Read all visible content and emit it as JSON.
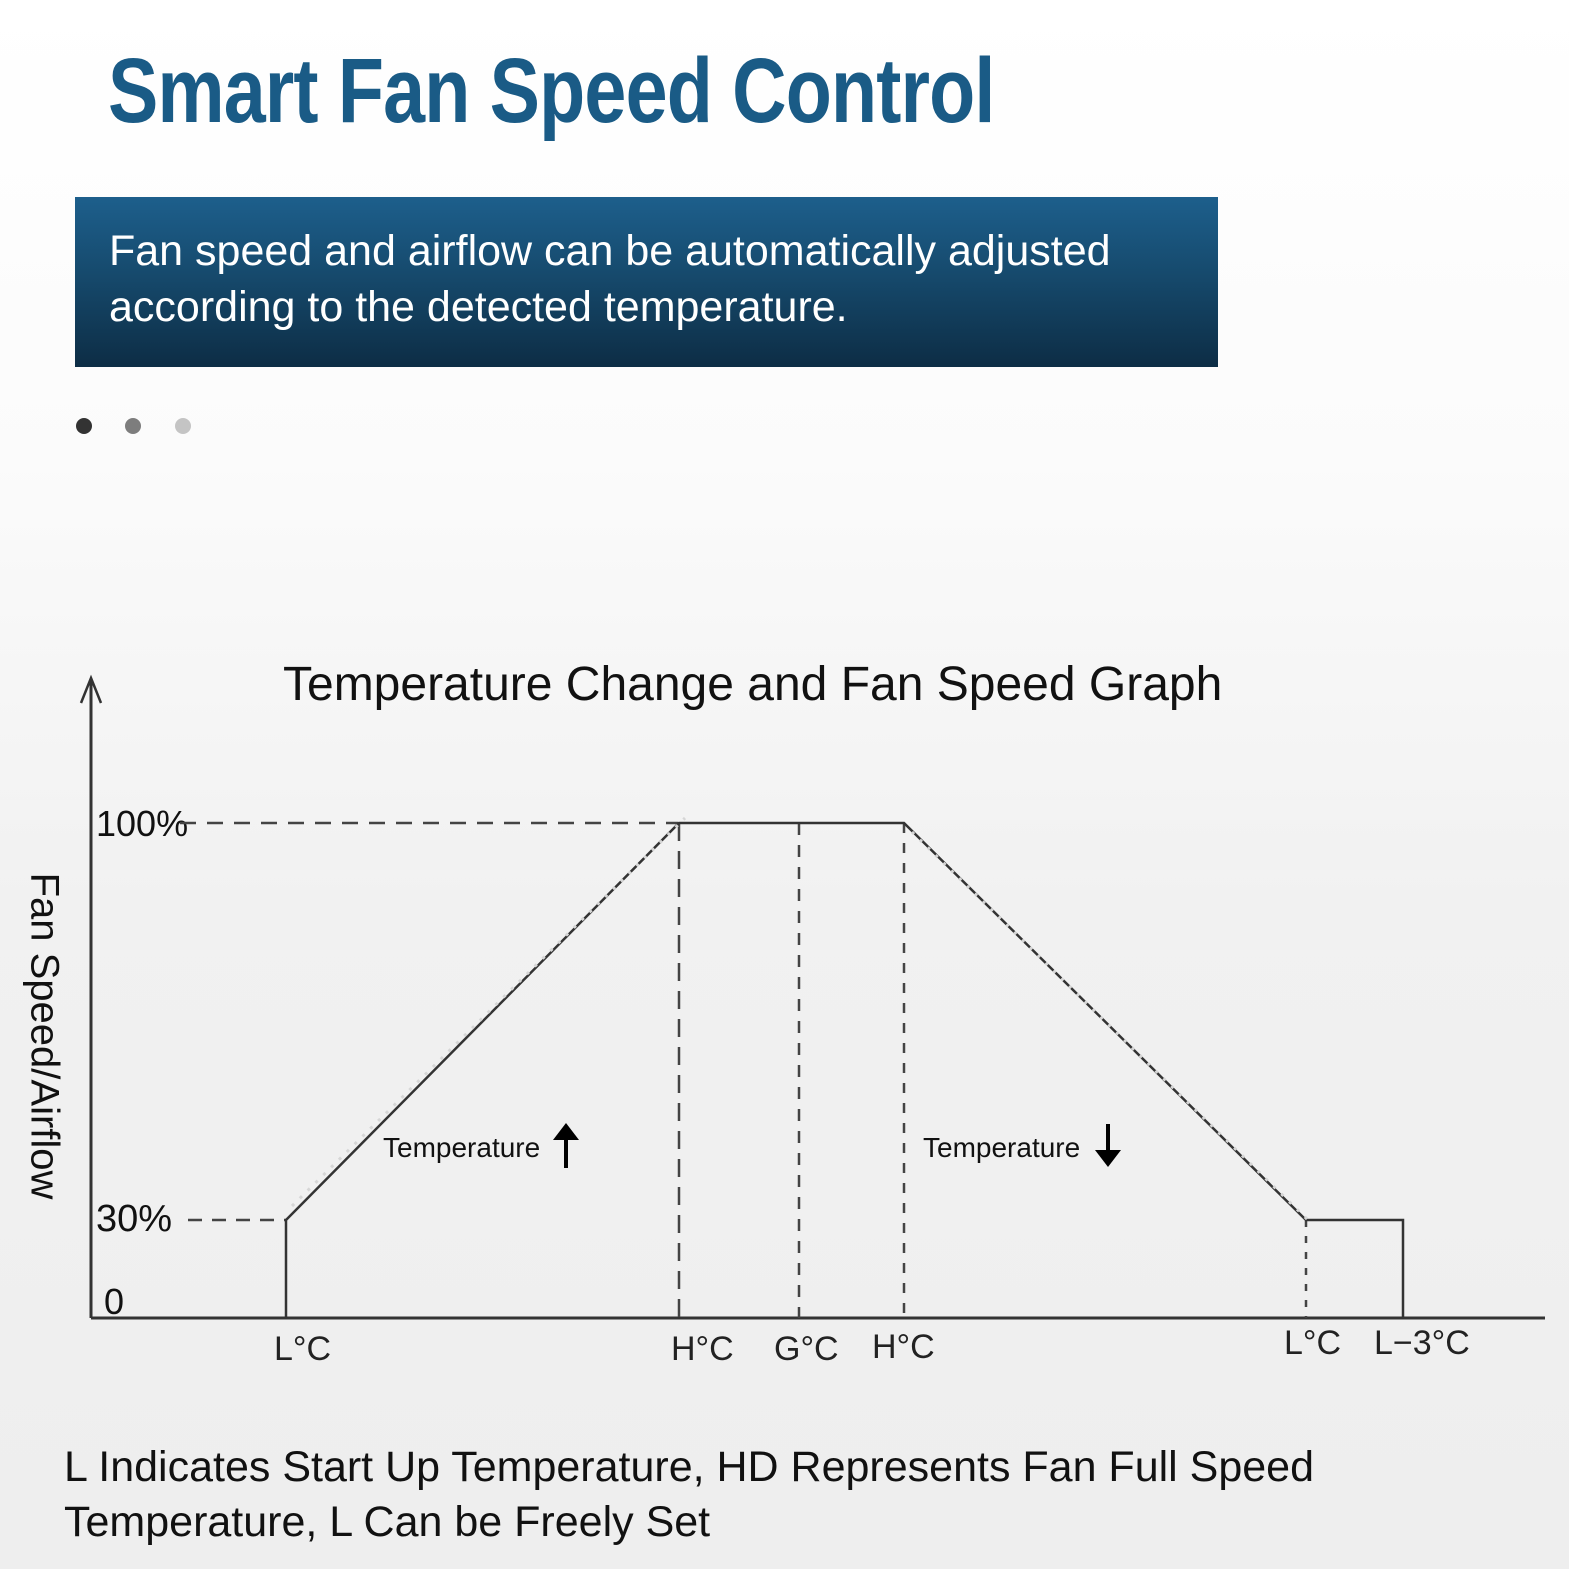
{
  "header": {
    "title": "Smart Fan Speed Control",
    "banner_text": "Fan speed and airflow can be automatically adjusted according to the detected temperature."
  },
  "carousel": {
    "dot_count": 3,
    "active_index": 0
  },
  "colors": {
    "title": "#1a5b86",
    "banner_top": "#1d5f8c",
    "banner_bottom": "#0d2d45",
    "line": "#333333"
  },
  "chart_data": {
    "type": "line",
    "title": "Temperature Change and Fan Speed Graph",
    "ylabel": "Fan Speed/Airflow",
    "xlabel": "",
    "yticks": [
      "100%",
      "30%",
      "0"
    ],
    "x_categories": [
      "L°C",
      "H°C",
      "G°C",
      "H°C",
      "L°C",
      "L−3°C"
    ],
    "series": [
      {
        "segment": "temperature-rising",
        "points": [
          [
            "L°C",
            0
          ],
          [
            "L°C",
            30
          ],
          [
            "H°C",
            100
          ],
          [
            "G°C",
            100
          ]
        ]
      },
      {
        "segment": "temperature-falling",
        "points": [
          [
            "G°C",
            100
          ],
          [
            "H°C",
            100
          ],
          [
            "L°C",
            30
          ],
          [
            "L−3°C",
            30
          ],
          [
            "L−3°C",
            0
          ]
        ]
      }
    ],
    "annotations": [
      {
        "text": "Temperature",
        "arrow": "up",
        "segment": "temperature-rising"
      },
      {
        "text": "Temperature",
        "arrow": "down",
        "segment": "temperature-falling"
      }
    ],
    "grid": false,
    "legend": "none"
  },
  "footer": {
    "note": "L Indicates Start Up Temperature, HD Represents Fan Full Speed Temperature, L Can be Freely Set"
  }
}
